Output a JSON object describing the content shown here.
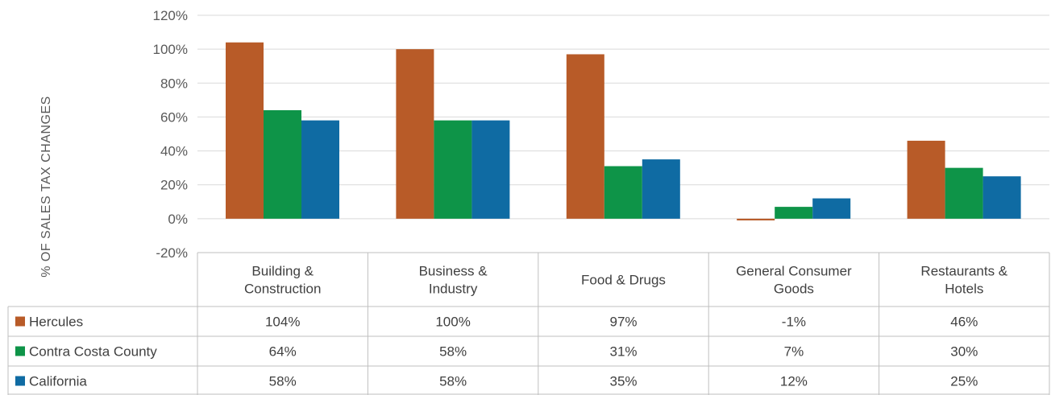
{
  "chart_data": {
    "type": "bar",
    "ylabel": "% OF  SALES TAX CHANGES",
    "ylim": [
      -20,
      120
    ],
    "yticks": [
      "-20%",
      "0%",
      "20%",
      "40%",
      "60%",
      "80%",
      "100%",
      "120%"
    ],
    "grid": true,
    "categories": [
      [
        "Building &",
        "Construction"
      ],
      [
        "Business &",
        "Industry"
      ],
      [
        "Food & Drugs"
      ],
      [
        "General Consumer",
        "Goods"
      ],
      [
        "Restaurants &",
        "Hotels"
      ]
    ],
    "series": [
      {
        "name": "Hercules",
        "color": "#B85B28",
        "values": [
          104,
          100,
          97,
          -1,
          46
        ],
        "labels": [
          "104%",
          "100%",
          "97%",
          "-1%",
          "46%"
        ]
      },
      {
        "name": "Contra Costa County",
        "color": "#0E9448",
        "values": [
          64,
          58,
          31,
          7,
          30
        ],
        "labels": [
          "64%",
          "58%",
          "31%",
          "7%",
          "30%"
        ]
      },
      {
        "name": "California",
        "color": "#0F6BA3",
        "values": [
          58,
          58,
          35,
          12,
          25
        ],
        "labels": [
          "58%",
          "58%",
          "35%",
          "12%",
          "25%"
        ]
      }
    ]
  }
}
